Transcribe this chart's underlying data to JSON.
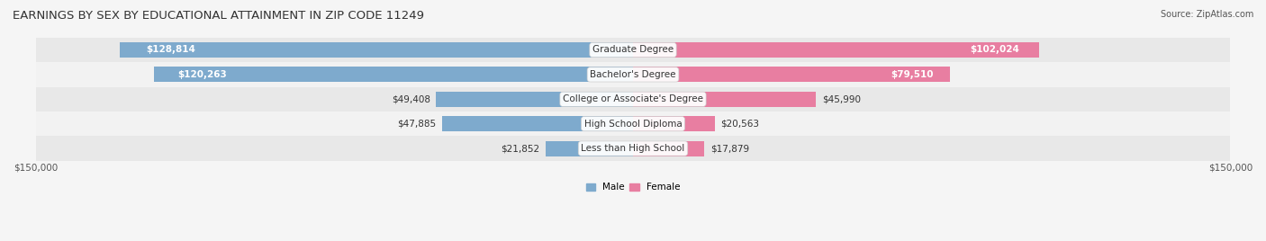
{
  "title": "EARNINGS BY SEX BY EDUCATIONAL ATTAINMENT IN ZIP CODE 11249",
  "source": "Source: ZipAtlas.com",
  "categories": [
    "Less than High School",
    "High School Diploma",
    "College or Associate's Degree",
    "Bachelor's Degree",
    "Graduate Degree"
  ],
  "male_values": [
    21852,
    47885,
    49408,
    120263,
    128814
  ],
  "female_values": [
    17879,
    20563,
    45990,
    79510,
    102024
  ],
  "max_val": 150000,
  "male_color": "#7eaacd",
  "female_color": "#e87ea1",
  "male_label": "Male",
  "female_label": "Female",
  "bar_height": 0.62,
  "row_bg_light": "#f0f0f0",
  "row_bg_dark": "#e0e0e0",
  "label_bg_color": "#ffffff",
  "title_fontsize": 9.5,
  "bar_label_fontsize": 7.5,
  "cat_label_fontsize": 7.5,
  "axis_label_fontsize": 7.5,
  "source_fontsize": 7.0
}
